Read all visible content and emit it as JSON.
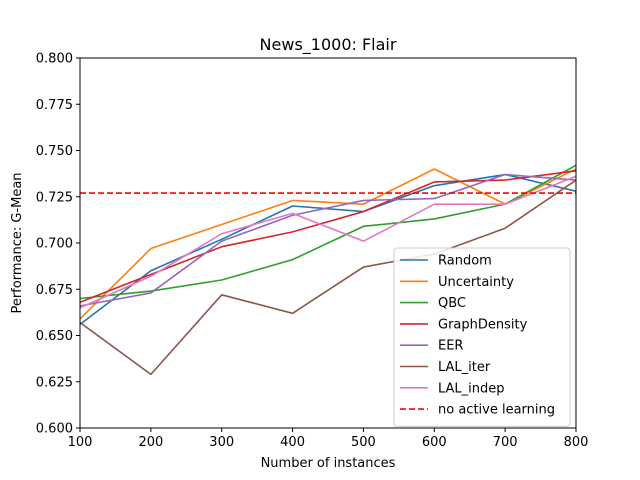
{
  "chart_data": {
    "type": "line",
    "title": "News_1000: Flair",
    "xlabel": "Number of instances",
    "ylabel": "Performance: G-Mean",
    "xlim": [
      100,
      800
    ],
    "ylim": [
      0.6,
      0.8
    ],
    "xticks": [
      100,
      200,
      300,
      400,
      500,
      600,
      700,
      800
    ],
    "yticks": [
      0.6,
      0.625,
      0.65,
      0.675,
      0.7,
      0.725,
      0.75,
      0.775,
      0.8
    ],
    "grid": false,
    "legend_position": "lower-right",
    "x": [
      100,
      200,
      300,
      400,
      500,
      600,
      700,
      800
    ],
    "series": [
      {
        "name": "Random",
        "color": "#1f77b4",
        "style": "solid",
        "values": [
          0.656,
          0.685,
          0.702,
          0.72,
          0.717,
          0.731,
          0.737,
          0.728
        ]
      },
      {
        "name": "Uncertainty",
        "color": "#ff7f0e",
        "style": "solid",
        "values": [
          0.659,
          0.697,
          0.71,
          0.723,
          0.721,
          0.74,
          0.721,
          0.74
        ]
      },
      {
        "name": "QBC",
        "color": "#2ca02c",
        "style": "solid",
        "values": [
          0.67,
          0.674,
          0.68,
          0.691,
          0.709,
          0.713,
          0.721,
          0.742
        ]
      },
      {
        "name": "GraphDensity",
        "color": "#d62728",
        "style": "solid",
        "values": [
          0.668,
          0.683,
          0.698,
          0.706,
          0.717,
          0.733,
          0.734,
          0.739
        ]
      },
      {
        "name": "EER",
        "color": "#9467bd",
        "style": "solid",
        "values": [
          0.666,
          0.673,
          0.701,
          0.715,
          0.723,
          0.724,
          0.737,
          0.734
        ]
      },
      {
        "name": "LAL_iter",
        "color": "#8c564b",
        "style": "solid",
        "values": [
          0.657,
          0.629,
          0.672,
          0.662,
          0.687,
          0.694,
          0.708,
          0.734
        ]
      },
      {
        "name": "LAL_indep",
        "color": "#e377c2",
        "style": "solid",
        "values": [
          0.665,
          0.682,
          0.705,
          0.716,
          0.701,
          0.721,
          0.721,
          0.736
        ]
      },
      {
        "name": "no active learning",
        "color": "#ff0000",
        "style": "dashed",
        "values": [
          0.727,
          0.727,
          0.727,
          0.727,
          0.727,
          0.727,
          0.727,
          0.727
        ]
      }
    ]
  }
}
